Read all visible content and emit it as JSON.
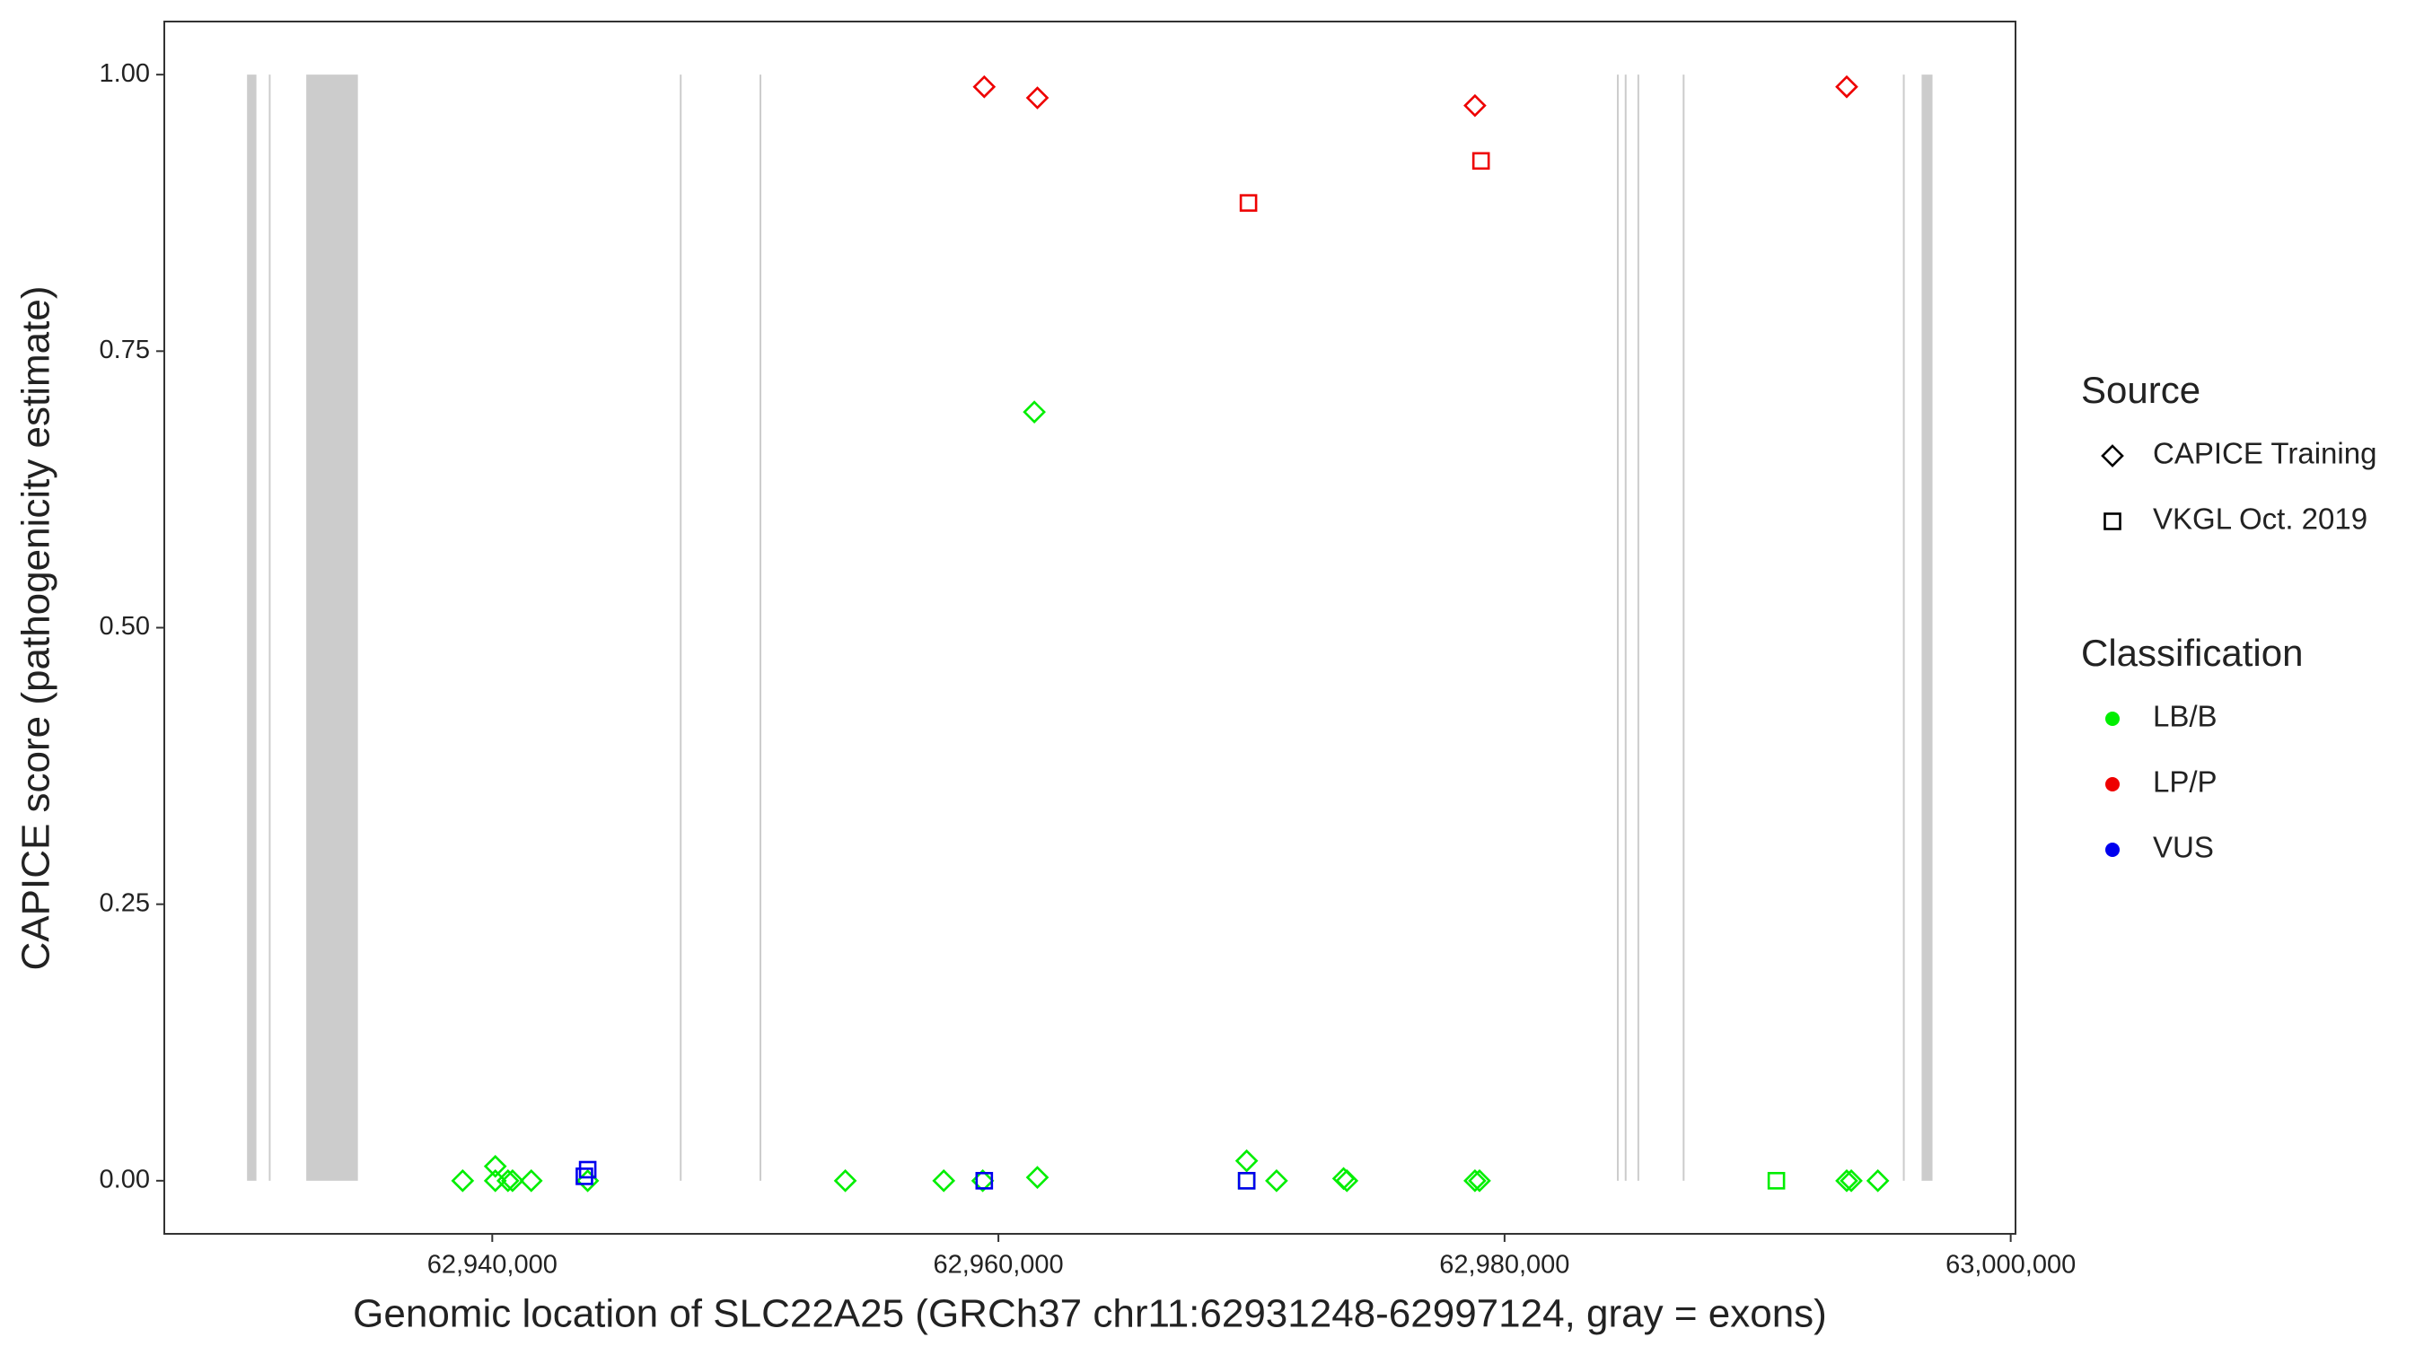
{
  "chart_data": {
    "type": "scatter",
    "x_label": "Genomic location of SLC22A25 (GRCh37 chr11:62931248-62997124, gray = exons)",
    "y_label": "CAPICE score (pathogenicity estimate)",
    "xlim": [
      62927040,
      63000190
    ],
    "ylim": [
      -0.048,
      1.048
    ],
    "xticks": [
      {
        "value": 62940000,
        "label": "62,940,000"
      },
      {
        "value": 62960000,
        "label": "62,960,000"
      },
      {
        "value": 62980000,
        "label": "62,980,000"
      },
      {
        "value": 63000000,
        "label": "63,000,000"
      }
    ],
    "yticks": [
      {
        "value": 0,
        "label": "0.00"
      },
      0.25,
      {
        "value": 0.5,
        "label": "0.50"
      },
      0.75,
      {
        "value": 1,
        "label": "1.00"
      }
    ],
    "exon_color": "#cccccc",
    "exons": [
      [
        62930310,
        62930680
      ],
      [
        62931170,
        62931230
      ],
      [
        62932650,
        62934690
      ],
      [
        62947410,
        62947470
      ],
      [
        62950560,
        62950620
      ],
      [
        62984440,
        62984500
      ],
      [
        62984750,
        62984810
      ],
      [
        62985250,
        62985310
      ],
      [
        62987040,
        62987100
      ],
      [
        62995740,
        62995800
      ],
      [
        62996480,
        62996910
      ]
    ],
    "series": [
      {
        "shape": "diamond",
        "color": "#00ee00",
        "x": [
          62938830,
          62940120,
          62940120,
          62940620,
          62940800,
          62941540,
          62943770,
          62953950,
          62957840,
          62959380,
          62961420,
          62961540,
          62969810,
          62970990,
          62973640,
          62973770,
          62978830,
          62979010,
          62993520,
          62993700,
          62994750
        ],
        "values": [
          0,
          0.013,
          0,
          0,
          0,
          0,
          0,
          0,
          0,
          0,
          0.695,
          0.003,
          0.018,
          0,
          0.002,
          0,
          0,
          0,
          0,
          0,
          0
        ]
      },
      {
        "shape": "square",
        "color": "#00ee00",
        "x": [
          62969810,
          62990740
        ],
        "values": [
          0,
          0
        ]
      },
      {
        "shape": "diamond",
        "color": "#ee0000",
        "x": [
          62959440,
          62961540,
          62978830,
          62993520
        ],
        "values": [
          0.989,
          0.979,
          0.972,
          0.989
        ]
      },
      {
        "shape": "square",
        "color": "#ee0000",
        "x": [
          62969880,
          62979070
        ],
        "values": [
          0.884,
          0.922
        ]
      },
      {
        "shape": "square",
        "color": "#0000ee",
        "x": [
          62943770,
          62943640,
          62959440,
          62969810
        ],
        "values": [
          0.01,
          0.004,
          0,
          0
        ]
      }
    ],
    "legends": [
      {
        "title": "Source",
        "entries": [
          {
            "name": "CAPICE Training",
            "shape": "diamond"
          },
          {
            "name": "VKGL Oct. 2019",
            "shape": "square"
          }
        ]
      },
      {
        "title": "Classification",
        "entries": [
          {
            "name": "LB/B",
            "color": "#00ee00"
          },
          {
            "name": "LP/P",
            "color": "#ee0000"
          },
          {
            "name": "VUS",
            "color": "#0000ee"
          }
        ]
      }
    ]
  }
}
